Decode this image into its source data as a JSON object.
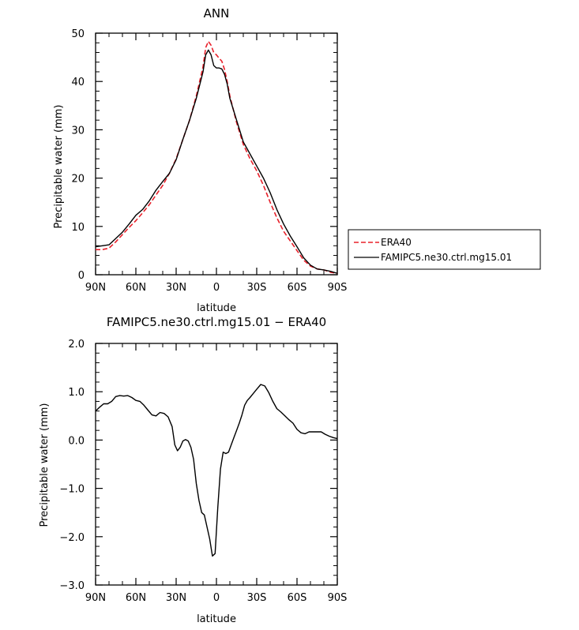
{
  "chart_data": [
    {
      "type": "line",
      "title": "ANN",
      "xlabel": "latitude",
      "ylabel": "Precipitable water (mm)",
      "xlim": [
        90,
        -90
      ],
      "ylim": [
        0,
        50
      ],
      "xticks": [
        90,
        60,
        30,
        0,
        -30,
        -60,
        -90
      ],
      "xtick_labels": [
        "90N",
        "60N",
        "30N",
        "0",
        "30S",
        "60S",
        "90S"
      ],
      "yticks": [
        0,
        10,
        20,
        30,
        40,
        50
      ],
      "ytick_labels": [
        "0",
        "10",
        "20",
        "30",
        "40",
        "50"
      ],
      "legend_position": "right",
      "series": [
        {
          "name": "ERA40",
          "color": "#e8202a",
          "dash": "dashed",
          "x": [
            90,
            85,
            80,
            75,
            70,
            65,
            60,
            55,
            50,
            45,
            40,
            35,
            30,
            25,
            20,
            15,
            10,
            8,
            6,
            4,
            2,
            0,
            -2,
            -4,
            -6,
            -8,
            -10,
            -15,
            -20,
            -25,
            -30,
            -35,
            -40,
            -45,
            -50,
            -55,
            -60,
            -65,
            -70,
            -75,
            -80,
            -85,
            -90
          ],
          "y": [
            5.2,
            5.2,
            5.5,
            6.8,
            8.3,
            9.8,
            11.2,
            12.8,
            14.5,
            16.5,
            18.5,
            21.0,
            24.0,
            28.0,
            32.0,
            37.0,
            43.0,
            47.0,
            48.3,
            47.5,
            46.0,
            45.5,
            44.8,
            44.2,
            42.5,
            40.0,
            37.0,
            31.5,
            27.0,
            24.0,
            21.5,
            18.5,
            15.0,
            11.8,
            9.0,
            7.0,
            5.0,
            3.0,
            1.8,
            1.2,
            1.0,
            0.5,
            0.3
          ]
        },
        {
          "name": "FAMIPC5.ne30.ctrl.mg15.01",
          "color": "#000000",
          "dash": "solid",
          "x": [
            90,
            85,
            80,
            75,
            70,
            65,
            60,
            55,
            50,
            45,
            40,
            35,
            30,
            25,
            20,
            15,
            10,
            8,
            6,
            4,
            2,
            0,
            -2,
            -4,
            -6,
            -8,
            -10,
            -15,
            -20,
            -25,
            -30,
            -35,
            -40,
            -45,
            -50,
            -55,
            -60,
            -65,
            -70,
            -75,
            -80,
            -85,
            -90
          ],
          "y": [
            5.8,
            6.0,
            6.2,
            7.5,
            8.8,
            10.5,
            12.3,
            13.5,
            15.3,
            17.5,
            19.3,
            21.0,
            23.8,
            28.0,
            32.0,
            36.5,
            42.0,
            45.5,
            46.5,
            45.5,
            43.3,
            42.8,
            42.8,
            42.6,
            41.5,
            39.5,
            36.5,
            32.0,
            27.5,
            25.0,
            22.5,
            20.0,
            17.0,
            13.5,
            10.5,
            8.0,
            5.8,
            3.5,
            2.0,
            1.2,
            1.0,
            0.7,
            0.3
          ]
        }
      ]
    },
    {
      "type": "line",
      "title": "FAMIPC5.ne30.ctrl.mg15.01 − ERA40",
      "xlabel": "latitude",
      "ylabel": "Precipitable water (mm)",
      "xlim": [
        90,
        -90
      ],
      "ylim": [
        -3.0,
        2.0
      ],
      "xticks": [
        90,
        60,
        30,
        0,
        -30,
        -60,
        -90
      ],
      "xtick_labels": [
        "90N",
        "60N",
        "30N",
        "0",
        "30S",
        "60S",
        "90S"
      ],
      "yticks": [
        -3.0,
        -2.0,
        -1.0,
        0.0,
        1.0,
        2.0
      ],
      "ytick_labels": [
        "−3.0",
        "−2.0",
        "−1.0",
        "0.0",
        "1.0",
        "2.0"
      ],
      "series": [
        {
          "color": "#000000",
          "dash": "solid",
          "x": [
            90,
            87,
            84,
            81,
            78,
            75,
            72,
            69,
            66,
            63,
            60,
            57,
            54,
            51,
            48,
            45,
            42,
            39,
            36,
            33,
            31,
            29,
            27,
            25,
            23,
            21,
            19,
            17,
            15,
            13,
            11,
            9,
            7,
            5,
            3,
            1,
            -1,
            -3,
            -5,
            -7,
            -9,
            -11,
            -13,
            -15,
            -17,
            -19,
            -21,
            -23,
            -25,
            -27,
            -30,
            -33,
            -36,
            -39,
            -42,
            -45,
            -48,
            -51,
            -54,
            -57,
            -60,
            -63,
            -66,
            -69,
            -72,
            -75,
            -78,
            -81,
            -84,
            -87,
            -90
          ],
          "y": [
            0.6,
            0.68,
            0.75,
            0.75,
            0.8,
            0.9,
            0.92,
            0.91,
            0.92,
            0.88,
            0.82,
            0.8,
            0.72,
            0.62,
            0.52,
            0.5,
            0.57,
            0.55,
            0.48,
            0.28,
            -0.1,
            -0.22,
            -0.15,
            -0.02,
            0.01,
            -0.02,
            -0.15,
            -0.4,
            -0.9,
            -1.25,
            -1.5,
            -1.55,
            -1.8,
            -2.05,
            -2.4,
            -2.35,
            -1.4,
            -0.6,
            -0.25,
            -0.28,
            -0.25,
            -0.1,
            0.05,
            0.2,
            0.35,
            0.52,
            0.72,
            0.82,
            0.88,
            0.95,
            1.05,
            1.15,
            1.12,
            0.98,
            0.8,
            0.65,
            0.58,
            0.5,
            0.42,
            0.35,
            0.22,
            0.15,
            0.13,
            0.17,
            0.17,
            0.17,
            0.17,
            0.12,
            0.08,
            0.05,
            0.03
          ]
        }
      ]
    }
  ]
}
